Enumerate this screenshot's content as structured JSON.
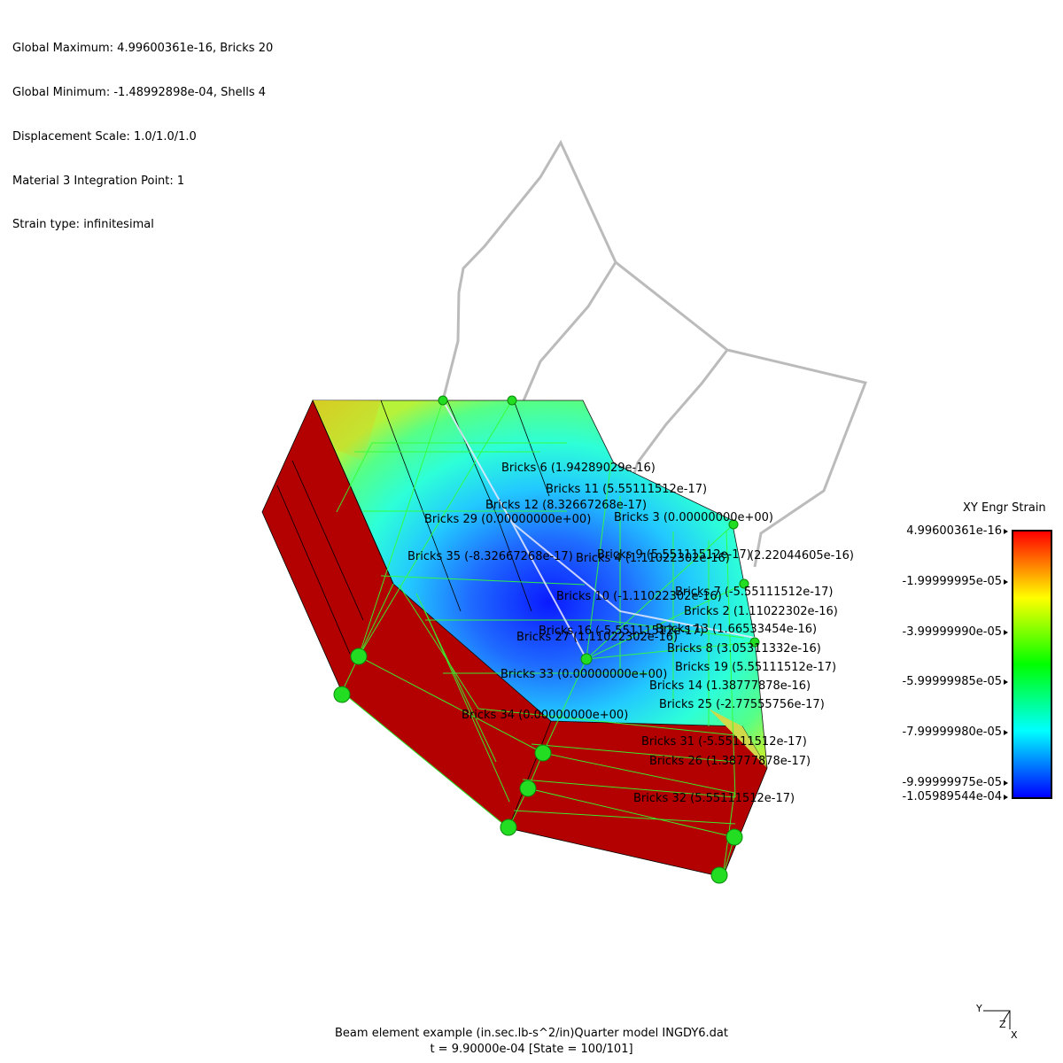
{
  "header": {
    "lines": [
      "Global Maximum: 4.99600361e-16, Bricks 20",
      "Global Minimum: -1.48992898e-04, Shells 4",
      "Displacement Scale: 1.0/1.0/1.0",
      "Material 3 Integration Point: 1",
      "Strain type: infinitesimal"
    ]
  },
  "legend": {
    "title": "XY Engr Strain",
    "ticks": [
      "4.99600361e-16",
      "-1.99999995e-05",
      "-3.99999990e-05",
      "-5.99999985e-05",
      "-7.99999980e-05",
      "-9.99999975e-05",
      "-1.05989544e-04"
    ],
    "colors": [
      "#ff0000",
      "#ffff00",
      "#00ff00",
      "#00ffff",
      "#0000ff"
    ]
  },
  "brick_labels": [
    "Bricks 6 (1.94289029e-16)",
    "Bricks 11 (5.55111512e-17)",
    "Bricks 12 (8.32667268e-17)",
    "Bricks 29 (0.00000000e+00)",
    "Bricks 3 (0.00000000e+00)",
    "Bricks 35 (-8.32667268e-17)",
    "Bricks 9 (5.55111512e-17)",
    "Bricks 4 (1.11022302e-16)",
    "(2.22044605e-16)",
    "Bricks 10 (-1.11022302e-16)",
    "Bricks 7 (-5.55111512e-17)",
    "Bricks 2 (1.11022302e-16)",
    "Bricks 13 (1.66533454e-16)",
    "Bricks 16 (-5.55111512e-17)",
    "Bricks 27 (1.11022302e-16)",
    "Bricks 8 (3.05311332e-16)",
    "Bricks 19 (5.55111512e-17)",
    "Bricks 33 (0.00000000e+00)",
    "Bricks 14 (1.38777878e-16)",
    "Bricks 25 (-2.77555756e-17)",
    "Bricks 34 (0.00000000e+00)",
    "Bricks 31 (-5.55111512e-17)",
    "Bricks 26 (1.38777878e-17)",
    "Bricks 32 (5.55111512e-17)"
  ],
  "axis_triad": {
    "y": "Y",
    "z": "Z",
    "x": "X"
  },
  "footer": {
    "title": "Beam element example (in.sec.lb-s^2/in)Quarter model INGDY6.dat",
    "state": "t = 9.90000e-04 [State = 100/101]"
  },
  "colors": {
    "solid_side": "#b30000",
    "mesh_lines": "#33ff33",
    "nodes": "#22dd22",
    "shell_outline": "#bbbbbb"
  }
}
